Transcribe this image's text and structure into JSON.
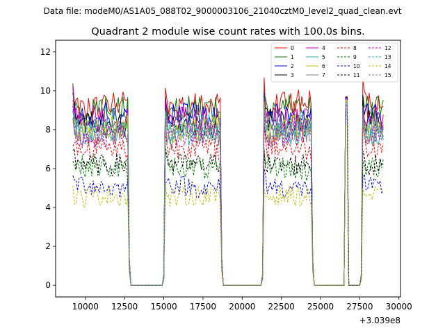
{
  "figure": {
    "suptitle": "Data file: modeM0/AS1A05_088T02_9000003106_21040cztM0_level2_quad_clean.evt"
  },
  "chart_data": {
    "type": "line",
    "title": "Quadrant 2 module wise count rates with 100.0s bins.",
    "xlabel": "",
    "ylabel": "",
    "x_offset_label": "+3.039e8",
    "xlim": [
      8100,
      30100
    ],
    "ylim": [
      -0.6,
      12.6
    ],
    "x_ticks": [
      10000,
      12500,
      15000,
      17500,
      20000,
      22500,
      25000,
      27500,
      30000
    ],
    "x_tick_labels": [
      "10000",
      "12500",
      "15000",
      "17500",
      "20000",
      "22500",
      "25000",
      "27500",
      "30000"
    ],
    "y_ticks": [
      0,
      2,
      4,
      6,
      8,
      10,
      12
    ],
    "y_tick_labels": [
      "0",
      "2",
      "4",
      "6",
      "8",
      "10",
      "12"
    ],
    "legend_position": "top-right",
    "bin_seconds": 100,
    "x_range": [
      9200,
      29000
    ],
    "on_intervals": [
      [
        9200,
        12700
      ],
      [
        15100,
        18600
      ],
      [
        21400,
        24400
      ],
      [
        26600,
        26650
      ],
      [
        27700,
        29000
      ]
    ],
    "spike": {
      "x": 26650,
      "peak": 9.7
    },
    "series": [
      {
        "name": "0",
        "color": "#ff0000",
        "dash": "solid",
        "level": 9.3
      },
      {
        "name": "1",
        "color": "#008000",
        "dash": "solid",
        "level": 9.0
      },
      {
        "name": "2",
        "color": "#0000ff",
        "dash": "solid",
        "level": 8.6
      },
      {
        "name": "3",
        "color": "#000000",
        "dash": "solid",
        "level": 8.3
      },
      {
        "name": "4",
        "color": "#bf00bf",
        "dash": "solid",
        "level": 8.6
      },
      {
        "name": "5",
        "color": "#20b2aa",
        "dash": "solid",
        "level": 7.9
      },
      {
        "name": "6",
        "color": "#bfbf00",
        "dash": "solid",
        "level": 8.1
      },
      {
        "name": "7",
        "color": "#808080",
        "dash": "solid",
        "level": 7.7
      },
      {
        "name": "8",
        "color": "#ff0000",
        "dash": "dashed",
        "level": 7.0
      },
      {
        "name": "9",
        "color": "#008000",
        "dash": "dashed",
        "level": 6.0
      },
      {
        "name": "10",
        "color": "#0000ff",
        "dash": "dashed",
        "level": 5.1
      },
      {
        "name": "11",
        "color": "#000000",
        "dash": "dashed",
        "level": 6.3
      },
      {
        "name": "12",
        "color": "#bf00bf",
        "dash": "dashed",
        "level": 7.8
      },
      {
        "name": "13",
        "color": "#17becf",
        "dash": "dashed",
        "level": 8.1
      },
      {
        "name": "14",
        "color": "#bfbf00",
        "dash": "dashed",
        "level": 4.5
      },
      {
        "name": "15",
        "color": "#808080",
        "dash": "dashed",
        "level": 8.0
      }
    ]
  }
}
